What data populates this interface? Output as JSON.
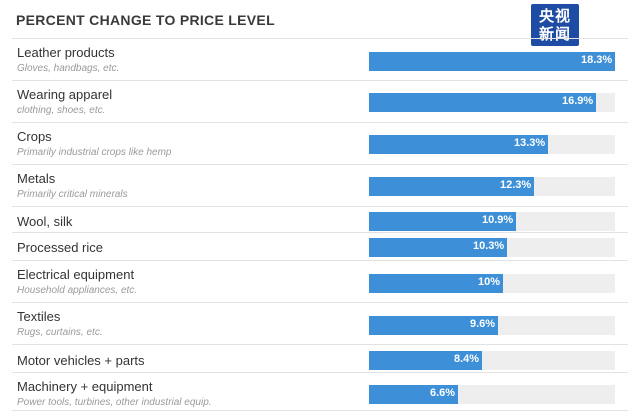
{
  "chart_data": {
    "type": "bar",
    "orientation": "horizontal",
    "title": "PERCENT CHANGE TO PRICE LEVEL",
    "categories": [
      "Leather products",
      "Wearing apparel",
      "Crops",
      "Metals",
      "Wool, silk",
      "Processed rice",
      "Electrical equipment",
      "Textiles",
      "Motor vehicles + parts",
      "Machinery + equipment"
    ],
    "subtitles": [
      "Gloves, handbags, etc.",
      "clothing, shoes, etc.",
      "Primarily industrial crops like hemp",
      "Primarily critical minerals",
      "",
      "",
      "Household appliances, etc.",
      "Rugs, curtains, etc.",
      "",
      "Power tools, turbines, other industrial equip."
    ],
    "values": [
      18.3,
      16.9,
      13.3,
      12.3,
      10.9,
      10.3,
      10,
      9.6,
      8.4,
      6.6
    ],
    "value_labels": [
      "18.3%",
      "16.9%",
      "13.3%",
      "12.3%",
      "10.9%",
      "10.3%",
      "10%",
      "9.6%",
      "8.4%",
      "6.6%"
    ],
    "xlim": [
      0,
      18.3
    ],
    "bar_color": "#3d8fd8",
    "track_color": "#eeeeee",
    "grid": false,
    "legend": "none"
  },
  "watermark": {
    "line1": "央视",
    "line2": "新闻",
    "color": "#1e4ba3"
  }
}
